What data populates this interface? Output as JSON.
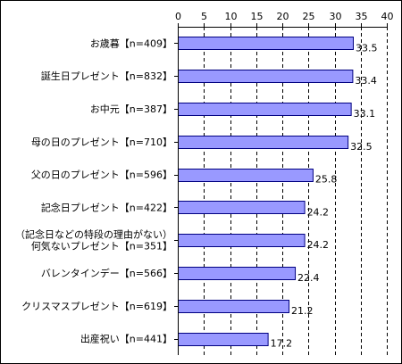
{
  "chart_data": {
    "type": "bar",
    "orientation": "horizontal",
    "title": "",
    "xlabel": "",
    "ylabel": "",
    "xlim": [
      0,
      40
    ],
    "xticks": [
      0,
      5,
      10,
      15,
      20,
      25,
      30,
      35,
      40
    ],
    "grid": "vertical dashed",
    "colors": {
      "bar": "#9999ff",
      "bar_edge": "#000080",
      "grid": "#000000"
    },
    "categories": [
      [
        "お歳暮【n=409】"
      ],
      [
        "誕生日プレゼント【n=832】"
      ],
      [
        "お中元【n=387】"
      ],
      [
        "母の日のプレゼント【n=710】"
      ],
      [
        "父の日のプレゼント【n=596】"
      ],
      [
        "記念日プレゼント【n=422】"
      ],
      [
        "（記念日などの特段の理由がない）",
        "何気ないプレゼント【n=351】"
      ],
      [
        "バレンタインデー【n=566】"
      ],
      [
        "クリスマスプレゼント【n=619】"
      ],
      [
        "出産祝い【n=441】"
      ]
    ],
    "values": [
      33.5,
      33.4,
      33.1,
      32.5,
      25.8,
      24.2,
      24.2,
      22.4,
      21.2,
      17.2
    ],
    "value_labels": [
      "33.5",
      "33.4",
      "33.1",
      "32.5",
      "25.8",
      "24.2",
      "24.2",
      "22.4",
      "21.2",
      "17.2"
    ]
  }
}
